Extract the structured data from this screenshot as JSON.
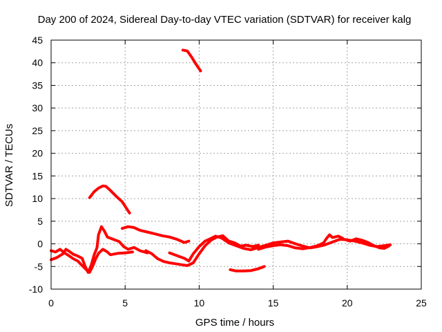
{
  "chart_data": {
    "type": "line",
    "title": "Day 200 of 2024, Sidereal Day-to-day VTEC variation (SDTVAR) for receiver kalg",
    "xlabel": "GPS time / hours",
    "ylabel": "SDTVAR / TECUs",
    "xlim": [
      0,
      25
    ],
    "ylim": [
      -10,
      45
    ],
    "xticks": [
      0,
      5,
      10,
      15,
      20,
      25
    ],
    "yticks": [
      -10,
      -5,
      0,
      5,
      10,
      15,
      20,
      25,
      30,
      35,
      40,
      45
    ],
    "grid": true,
    "color": "#ff0000",
    "series": [
      {
        "name": "arc-1",
        "points": [
          [
            8.9,
            42.8
          ],
          [
            9.2,
            42.6
          ],
          [
            9.5,
            41.2
          ],
          [
            9.8,
            39.6
          ],
          [
            10.1,
            38.2
          ]
        ]
      },
      {
        "name": "arc-2",
        "points": [
          [
            2.6,
            10.2
          ],
          [
            2.9,
            11.5
          ],
          [
            3.2,
            12.3
          ],
          [
            3.5,
            12.8
          ],
          [
            3.7,
            12.7
          ],
          [
            4.0,
            11.8
          ],
          [
            4.4,
            10.5
          ],
          [
            4.8,
            9.3
          ],
          [
            5.2,
            7.3
          ],
          [
            5.3,
            6.8
          ]
        ]
      },
      {
        "name": "arc-3",
        "points": [
          [
            0.0,
            -1.5
          ],
          [
            0.3,
            -1.8
          ],
          [
            0.6,
            -1.2
          ],
          [
            0.9,
            -2.0
          ],
          [
            1.2,
            -2.6
          ],
          [
            1.5,
            -3.3
          ],
          [
            1.8,
            -3.8
          ],
          [
            2.1,
            -4.8
          ],
          [
            2.4,
            -5.8
          ],
          [
            2.6,
            -6.3
          ],
          [
            2.8,
            -5.0
          ],
          [
            3.0,
            -3.4
          ],
          [
            3.2,
            -2.1
          ],
          [
            3.5,
            -1.2
          ],
          [
            3.8,
            -1.8
          ],
          [
            4.0,
            -2.4
          ],
          [
            4.5,
            -2.1
          ],
          [
            5.0,
            -2.0
          ],
          [
            5.5,
            -1.8
          ]
        ]
      },
      {
        "name": "arc-4",
        "points": [
          [
            0.0,
            -3.5
          ],
          [
            0.4,
            -3.0
          ],
          [
            0.8,
            -2.2
          ],
          [
            1.0,
            -1.2
          ],
          [
            1.2,
            -1.6
          ],
          [
            1.5,
            -2.3
          ],
          [
            1.8,
            -2.7
          ],
          [
            2.1,
            -3.2
          ],
          [
            2.3,
            -5.0
          ],
          [
            2.5,
            -6.3
          ],
          [
            2.7,
            -4.8
          ],
          [
            2.9,
            -2.5
          ],
          [
            3.1,
            -0.8
          ],
          [
            3.2,
            2.0
          ],
          [
            3.4,
            3.8
          ],
          [
            3.6,
            2.8
          ],
          [
            3.8,
            1.5
          ],
          [
            4.2,
            1.0
          ],
          [
            4.6,
            0.5
          ],
          [
            4.9,
            -0.6
          ],
          [
            5.2,
            -1.2
          ],
          [
            5.6,
            -0.8
          ],
          [
            6.0,
            -1.5
          ],
          [
            6.5,
            -2.0
          ]
        ]
      },
      {
        "name": "arc-5",
        "points": [
          [
            4.8,
            3.4
          ],
          [
            5.2,
            3.8
          ],
          [
            5.6,
            3.6
          ],
          [
            6.0,
            3.0
          ],
          [
            6.5,
            2.6
          ],
          [
            7.0,
            2.2
          ],
          [
            7.5,
            1.8
          ],
          [
            8.0,
            1.5
          ],
          [
            8.5,
            1.0
          ],
          [
            9.0,
            0.3
          ],
          [
            9.3,
            0.6
          ]
        ]
      },
      {
        "name": "arc-6",
        "points": [
          [
            6.4,
            -1.5
          ],
          [
            6.8,
            -2.2
          ],
          [
            7.2,
            -3.3
          ],
          [
            7.6,
            -3.9
          ],
          [
            8.0,
            -4.2
          ],
          [
            8.4,
            -4.4
          ],
          [
            8.8,
            -4.6
          ],
          [
            9.2,
            -4.8
          ],
          [
            9.6,
            -4.2
          ],
          [
            10.0,
            -2.2
          ],
          [
            10.4,
            -0.4
          ],
          [
            10.8,
            0.8
          ],
          [
            11.2,
            1.5
          ],
          [
            11.6,
            1.8
          ],
          [
            12.0,
            0.6
          ],
          [
            12.4,
            0.2
          ],
          [
            12.8,
            -0.5
          ],
          [
            13.2,
            -0.3
          ],
          [
            13.6,
            -0.6
          ],
          [
            14.0,
            -0.3
          ]
        ]
      },
      {
        "name": "arc-7",
        "points": [
          [
            8.0,
            -2.0
          ],
          [
            8.5,
            -2.6
          ],
          [
            9.0,
            -3.2
          ],
          [
            9.3,
            -3.8
          ],
          [
            9.6,
            -2.2
          ],
          [
            10.0,
            -0.6
          ],
          [
            10.4,
            0.6
          ],
          [
            10.8,
            1.2
          ],
          [
            11.1,
            1.7
          ],
          [
            11.5,
            1.3
          ],
          [
            12.0,
            0.2
          ],
          [
            12.5,
            -0.4
          ],
          [
            13.0,
            -1.0
          ],
          [
            13.5,
            -1.3
          ],
          [
            14.0,
            -0.8
          ],
          [
            14.5,
            -0.3
          ],
          [
            15.0,
            0.2
          ],
          [
            15.5,
            0.4
          ],
          [
            16.0,
            0.6
          ],
          [
            16.5,
            0.0
          ],
          [
            17.0,
            -0.5
          ],
          [
            17.5,
            -0.9
          ],
          [
            18.0,
            -0.6
          ],
          [
            18.5,
            -0.2
          ],
          [
            19.0,
            0.4
          ],
          [
            19.5,
            1.0
          ],
          [
            20.0,
            0.9
          ],
          [
            20.5,
            0.6
          ],
          [
            21.0,
            0.2
          ],
          [
            21.5,
            -0.3
          ],
          [
            22.0,
            -0.6
          ],
          [
            22.5,
            -0.4
          ],
          [
            22.9,
            -0.2
          ]
        ]
      },
      {
        "name": "arc-8",
        "points": [
          [
            14.0,
            -1.2
          ],
          [
            14.5,
            -0.7
          ],
          [
            15.0,
            -0.4
          ],
          [
            15.5,
            -0.2
          ],
          [
            16.0,
            -0.4
          ],
          [
            16.5,
            -0.9
          ],
          [
            17.0,
            -1.1
          ],
          [
            17.5,
            -0.8
          ],
          [
            18.0,
            -0.4
          ],
          [
            18.4,
            0.2
          ],
          [
            18.6,
            1.2
          ],
          [
            18.8,
            2.0
          ],
          [
            19.0,
            1.4
          ],
          [
            19.4,
            1.7
          ],
          [
            19.7,
            1.2
          ]
        ]
      },
      {
        "name": "arc-9",
        "points": [
          [
            19.8,
            1.0
          ],
          [
            20.2,
            0.6
          ],
          [
            20.6,
            1.1
          ],
          [
            21.0,
            0.8
          ],
          [
            21.4,
            0.3
          ],
          [
            21.8,
            -0.4
          ],
          [
            22.2,
            -0.9
          ],
          [
            22.5,
            -1.0
          ],
          [
            22.8,
            -0.5
          ],
          [
            22.9,
            -0.2
          ]
        ]
      },
      {
        "name": "arc-10",
        "points": [
          [
            12.1,
            -5.7
          ],
          [
            12.5,
            -6.0
          ],
          [
            13.0,
            -6.0
          ],
          [
            13.5,
            -5.9
          ],
          [
            14.0,
            -5.5
          ],
          [
            14.4,
            -5.0
          ]
        ]
      }
    ]
  }
}
